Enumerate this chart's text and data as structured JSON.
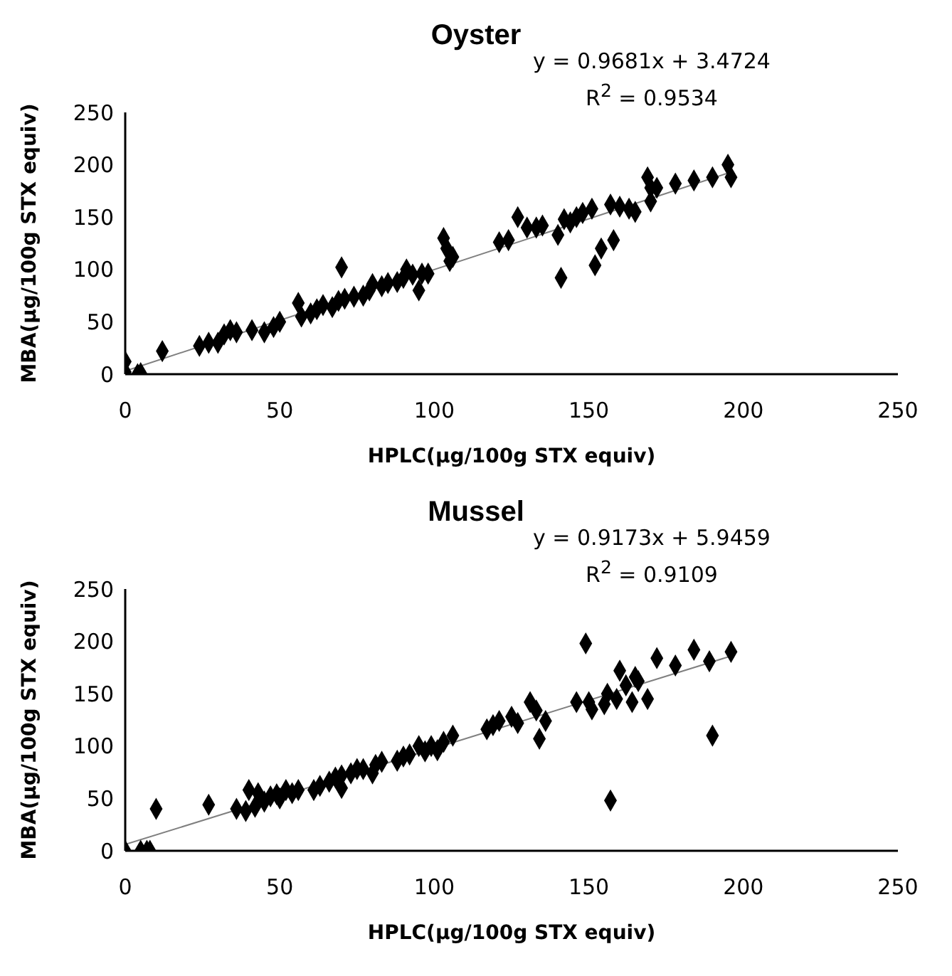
{
  "chart_data": [
    {
      "type": "scatter",
      "title": "Oyster",
      "xlabel": "HPLC(μg/100g STX equiv)",
      "ylabel": "MBA(μg/100g STX equiv)",
      "annotations": [
        "y = 0.9681x + 3.4724",
        "R$^{2}$ = 0.9534"
      ],
      "xlim": [
        0,
        250
      ],
      "ylim": [
        0,
        250
      ],
      "xticks": [
        0,
        50,
        100,
        150,
        200,
        250
      ],
      "yticks": [
        0,
        50,
        100,
        150,
        200,
        250
      ],
      "grid": false,
      "marker": "diamond",
      "series": [
        {
          "type": "scatter",
          "color": "#000000",
          "x": [
            0,
            0,
            4,
            5,
            12,
            24,
            27,
            30,
            32,
            34,
            36,
            41,
            45,
            48,
            50,
            56,
            57,
            60,
            62,
            64,
            67,
            69,
            70,
            71,
            74,
            77,
            79,
            80,
            83,
            85,
            88,
            90,
            91,
            93,
            95,
            96,
            98,
            103,
            104,
            105,
            106,
            121,
            124,
            127,
            130,
            133,
            135,
            140,
            141,
            142,
            144,
            146,
            148,
            151,
            152,
            154,
            157,
            158,
            160,
            163,
            165,
            169,
            170,
            170,
            172,
            178,
            184,
            190,
            195,
            196
          ],
          "values": [
            12,
            2,
            0,
            1,
            22,
            27,
            30,
            30,
            38,
            42,
            40,
            42,
            40,
            45,
            50,
            68,
            55,
            58,
            62,
            66,
            64,
            70,
            102,
            72,
            74,
            75,
            80,
            86,
            84,
            87,
            88,
            92,
            100,
            95,
            80,
            96,
            96,
            130,
            120,
            108,
            112,
            126,
            128,
            150,
            140,
            140,
            142,
            133,
            92,
            148,
            145,
            150,
            154,
            158,
            104,
            120,
            162,
            128,
            160,
            158,
            155,
            188,
            178,
            165,
            178,
            182,
            185,
            188,
            200,
            188
          ]
        },
        {
          "type": "line",
          "color": "#7f7f7f",
          "marker": "none",
          "x": [
            0,
            196
          ],
          "values": [
            3,
            193
          ]
        }
      ]
    },
    {
      "type": "scatter",
      "title": "Mussel",
      "xlabel": "HPLC(μg/100g STX equiv)",
      "ylabel": "MBA(μg/100g STX equiv)",
      "annotations": [
        "y = 0.9173x + 5.9459",
        "R$^{2}$ = 0.9109"
      ],
      "xlim": [
        0,
        250
      ],
      "ylim": [
        0,
        250
      ],
      "xticks": [
        0,
        50,
        100,
        150,
        200,
        250
      ],
      "yticks": [
        0,
        50,
        100,
        150,
        200,
        250
      ],
      "grid": false,
      "marker": "diamond",
      "series": [
        {
          "type": "scatter",
          "color": "#000000",
          "x": [
            0,
            5,
            7,
            8,
            10,
            27,
            36,
            39,
            40,
            42,
            43,
            45,
            47,
            49,
            50,
            52,
            54,
            56,
            61,
            63,
            66,
            68,
            70,
            70,
            73,
            75,
            77,
            80,
            81,
            83,
            88,
            90,
            92,
            95,
            97,
            99,
            101,
            103,
            106,
            117,
            119,
            121,
            125,
            127,
            131,
            133,
            134,
            136,
            146,
            149,
            150,
            151,
            155,
            156,
            157,
            159,
            160,
            162,
            164,
            165,
            166,
            169,
            172,
            178,
            184,
            189,
            190,
            196
          ],
          "values": [
            0,
            0,
            0,
            0,
            40,
            44,
            40,
            38,
            58,
            42,
            55,
            47,
            52,
            54,
            50,
            58,
            55,
            58,
            58,
            62,
            66,
            70,
            72,
            60,
            74,
            78,
            78,
            74,
            82,
            85,
            86,
            90,
            92,
            100,
            95,
            100,
            96,
            104,
            110,
            116,
            120,
            124,
            128,
            122,
            142,
            134,
            107,
            124,
            142,
            198,
            142,
            135,
            140,
            150,
            48,
            145,
            172,
            158,
            142,
            166,
            162,
            145,
            184,
            177,
            192,
            181,
            110,
            190
          ]
        },
        {
          "type": "line",
          "color": "#7f7f7f",
          "marker": "none",
          "x": [
            0,
            196
          ],
          "values": [
            6,
            186
          ]
        }
      ]
    }
  ]
}
